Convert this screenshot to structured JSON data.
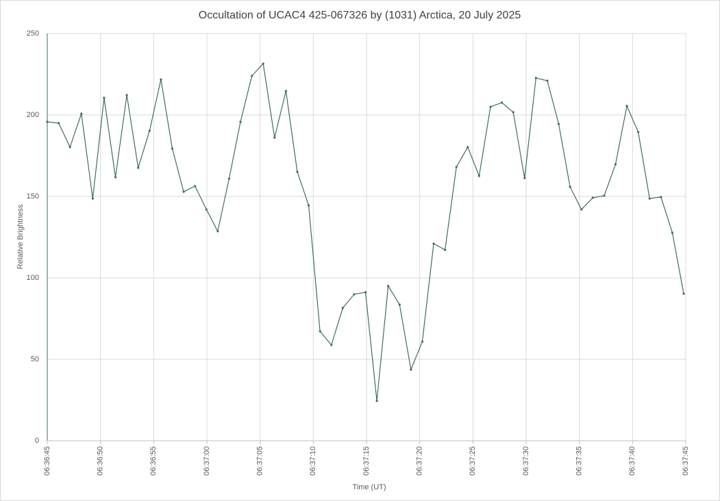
{
  "chart_data": {
    "type": "line",
    "title": "Occultation of UCAC4 425-067326 by (1031) Arctica, 20 July 2025",
    "x_label": "Time (UT)",
    "y_label": "Relative Brightness",
    "x": [
      23805,
      23806.068,
      23807.136,
      23808.204,
      23809.272,
      23810.34,
      23811.408,
      23812.476,
      23813.544,
      23814.612,
      23815.68,
      23816.748,
      23817.816,
      23818.884,
      23819.952,
      23821.02,
      23822.088,
      23823.156,
      23824.224,
      23825.292,
      23826.36,
      23827.428,
      23828.496,
      23829.564,
      23830.632,
      23831.7,
      23832.768,
      23833.836,
      23834.904,
      23835.972,
      23837.04,
      23838.108,
      23839.176,
      23840.244,
      23841.312,
      23842.38,
      23843.448,
      23844.516,
      23845.584,
      23846.652,
      23847.72,
      23848.788,
      23849.856,
      23850.924,
      23851.992,
      23853.06,
      23854.128,
      23855.196,
      23856.264,
      23857.332,
      23858.4,
      23859.468,
      23860.536,
      23861.604,
      23862.672,
      23863.74,
      23864.808
    ],
    "series": [
      {
        "name": "Relative Brightness",
        "color": "#3e6e5e",
        "values": [
          195.8,
          195,
          180.3,
          200.8,
          148.7,
          210.5,
          161.8,
          212.2,
          167.6,
          190.3,
          221.8,
          179.4,
          152.9,
          156.3,
          142,
          128.6,
          160.9,
          195.8,
          224,
          231.5,
          186.1,
          214.7,
          165.1,
          144.5,
          67.2,
          58.8,
          81.5,
          89.9,
          91.2,
          24.4,
          95,
          83.6,
          43.7,
          60.9,
          121,
          117.2,
          168.1,
          180.3,
          162.6,
          205,
          207.6,
          201.7,
          161.3,
          222.7,
          221,
          194.5,
          155.9,
          142,
          149.2,
          150.4,
          169.7,
          205.5,
          189.5,
          148.7,
          149.6,
          127.7,
          90.3
        ]
      }
    ],
    "xlim": [
      23805,
      23865
    ],
    "xticks": [
      {
        "value": 23805,
        "label": "06:36:45"
      },
      {
        "value": 23810,
        "label": "06:36:50"
      },
      {
        "value": 23815,
        "label": "06:36:55"
      },
      {
        "value": 23820,
        "label": "06:37:00"
      },
      {
        "value": 23825,
        "label": "06:37:05"
      },
      {
        "value": 23830,
        "label": "06:37:10"
      },
      {
        "value": 23835,
        "label": "06:37:15"
      },
      {
        "value": 23840,
        "label": "06:37:20"
      },
      {
        "value": 23845,
        "label": "06:37:25"
      },
      {
        "value": 23850,
        "label": "06:37:30"
      },
      {
        "value": 23855,
        "label": "06:37:35"
      },
      {
        "value": 23860,
        "label": "06:37:40"
      },
      {
        "value": 23865,
        "label": "06:37:45"
      }
    ],
    "ylim": [
      0,
      250
    ],
    "yticks": [
      0,
      50,
      100,
      150,
      200,
      250
    ],
    "grid": true
  }
}
